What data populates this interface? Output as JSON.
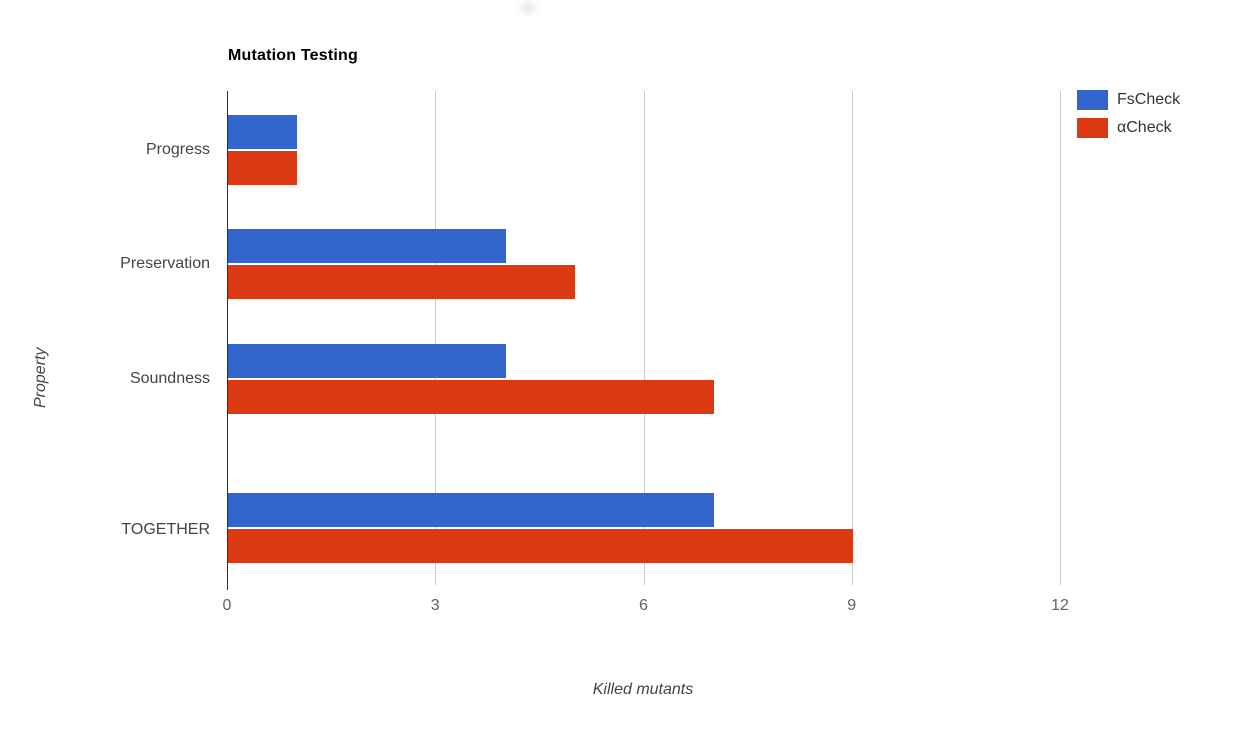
{
  "chart_data": {
    "type": "bar",
    "orientation": "horizontal",
    "title": "Mutation Testing",
    "categories": [
      "Progress",
      "Preservation",
      "Soundness",
      "TOGETHER"
    ],
    "series": [
      {
        "name": "FsCheck",
        "color": "#3366cc",
        "values": [
          1,
          4,
          4,
          7
        ]
      },
      {
        "name": "αCheck",
        "color": "#dc3912",
        "values": [
          1,
          5,
          7,
          9
        ]
      }
    ],
    "xlabel": "Killed mutants",
    "ylabel": "Property",
    "xlim": [
      0,
      12
    ],
    "xticks": [
      0,
      3,
      6,
      9,
      12
    ],
    "grid": true,
    "legend_position": "top-right",
    "axis_line_color": "#333333",
    "gridline_color": "#cccccc"
  }
}
